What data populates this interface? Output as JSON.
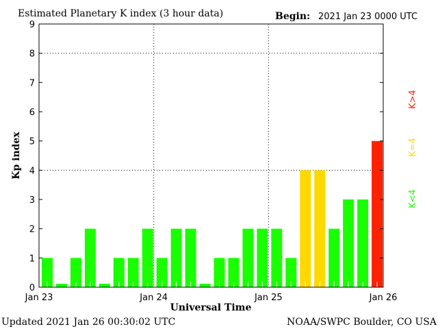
{
  "chart_data": {
    "type": "bar",
    "title": "Estimated Planetary K index (3 hour data)",
    "begin_label": "Begin:",
    "begin_value": "2021 Jan 23 0000 UTC",
    "xlabel": "Universal Time",
    "ylabel": "Kp index",
    "ylim": [
      0,
      9
    ],
    "yticks": [
      "0",
      "1",
      "2",
      "3",
      "4",
      "5",
      "6",
      "7",
      "8",
      "9"
    ],
    "xticks": [
      "Jan 23",
      "Jan 24",
      "Jan 25",
      "Jan 26"
    ],
    "grid": "dotted at day boundaries and Kp 4, 8",
    "values": [
      1,
      0,
      1,
      2,
      0,
      1,
      1,
      2,
      1,
      2,
      2,
      0,
      1,
      1,
      2,
      2,
      2,
      1,
      4,
      4,
      2,
      3,
      3,
      5
    ],
    "colors": {
      "low": "#19ff00",
      "storm_threshold": "#ffd800",
      "high": "#ff2200"
    },
    "legend": [
      "K<4",
      "K=4",
      "K>4"
    ],
    "legend_placement": "right"
  },
  "footer": {
    "updated": "Updated 2021 Jan 26 00:30:02 UTC",
    "source": "NOAA/SWPC Boulder, CO USA"
  }
}
